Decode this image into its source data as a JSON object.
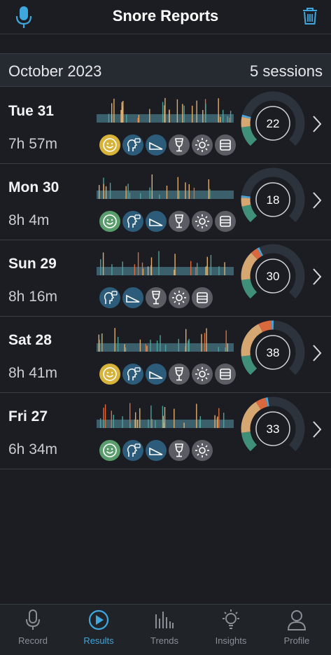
{
  "header": {
    "title": "Snore Reports",
    "left_icon": "microphone-icon",
    "right_icon": "trash-icon"
  },
  "month_header": {
    "month": "October 2023",
    "sessions_count": "5 sessions"
  },
  "sessions": [
    {
      "day": "Tue 31",
      "duration": "7h 57m",
      "score": "22",
      "score_arcs": {
        "green": 0.14,
        "tan": 0.07,
        "orange": 0,
        "blue": 0.015
      },
      "icons": [
        "smiley-face-icon",
        "head-talk-icon",
        "ramp-icon",
        "wine-glass-icon",
        "sun-icon",
        "bed-icon"
      ]
    },
    {
      "day": "Mon 30",
      "duration": "8h 4m",
      "score": "18",
      "score_arcs": {
        "green": 0.12,
        "tan": 0.06,
        "orange": 0,
        "blue": 0.015
      },
      "icons": [
        "smiley-face-icon",
        "head-talk-icon",
        "ramp-icon",
        "wine-glass-icon",
        "sun-icon",
        "bed-icon"
      ]
    },
    {
      "day": "Sun 29",
      "duration": "8h 16m",
      "score": "30",
      "score_arcs": {
        "green": 0.14,
        "tan": 0.2,
        "orange": 0.05,
        "blue": 0.015
      },
      "icons": [
        "head-talk-icon",
        "ramp-icon",
        "wine-glass-icon",
        "sun-icon",
        "bed-icon"
      ]
    },
    {
      "day": "Sat 28",
      "duration": "8h 41m",
      "score": "38",
      "score_arcs": {
        "green": 0.14,
        "tan": 0.26,
        "orange": 0.09,
        "blue": 0.015
      },
      "icons": [
        "smiley-face-icon",
        "head-talk-icon",
        "ramp-icon",
        "wine-glass-icon",
        "sun-icon",
        "bed-icon"
      ]
    },
    {
      "day": "Fri 27",
      "duration": "6h 34m",
      "score": "33",
      "score_arcs": {
        "green": 0.14,
        "tan": 0.24,
        "orange": 0.07,
        "blue": 0.015
      },
      "icons": [
        "smiley-face-icon",
        "head-talk-icon",
        "ramp-icon",
        "wine-glass-icon",
        "sun-icon"
      ]
    }
  ],
  "tabs": [
    {
      "label": "Record",
      "icon": "microphone-icon",
      "active": false
    },
    {
      "label": "Results",
      "icon": "play-circle-icon",
      "active": true
    },
    {
      "label": "Trends",
      "icon": "bar-chart-icon",
      "active": false
    },
    {
      "label": "Insights",
      "icon": "lightbulb-icon",
      "active": false
    },
    {
      "label": "Profile",
      "icon": "person-icon",
      "active": false
    }
  ],
  "colors": {
    "background": "#1b1d22",
    "accent": "#3ea7de",
    "gauge_green": "#3f8f79",
    "gauge_tan": "#d6a770",
    "gauge_orange": "#d9683e",
    "gauge_blue": "#4aa3d6",
    "gauge_track": "#2c333c",
    "timeline_band": "#3b5f6b",
    "mark_tan": "#e0ad6e",
    "mark_teal": "#4aa39a",
    "mark_orange": "#e06a3a"
  }
}
